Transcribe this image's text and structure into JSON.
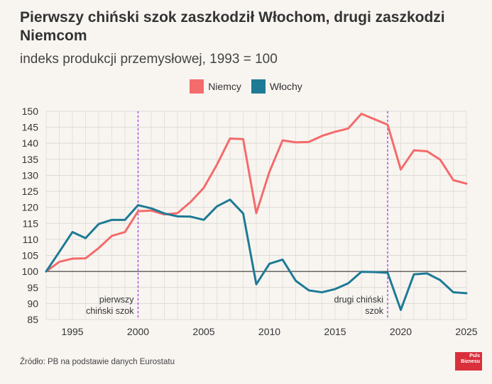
{
  "title": "Pierwszy chiński szok zaszkodził Włochom, drugi zaszkodzi Niemcom",
  "subtitle": "indeks produkcji przemysłowej, 1993 = 100",
  "source": "Źródło: PB na podstawie danych Eurostatu",
  "logo_text": "Puls Biznesu",
  "colors": {
    "niemcy": "#f46b6b",
    "wlochy": "#1e7a95",
    "marker": "#b455e8",
    "background": "#f8f5f1"
  },
  "chart_data": {
    "type": "line",
    "title": "Pierwszy chiński szok zaszkodził Włochom, drugi zaszkodzi Niemcom",
    "ylabel": "indeks produkcji przemysłowej, 1993 = 100",
    "xlim": [
      1993,
      2025
    ],
    "ylim": [
      85,
      150
    ],
    "yticks": [
      85,
      90,
      95,
      100,
      105,
      110,
      115,
      120,
      125,
      130,
      135,
      140,
      145,
      150
    ],
    "xticks": [
      1995,
      2000,
      2005,
      2010,
      2015,
      2020,
      2025
    ],
    "reference_line": 100,
    "x": [
      1993,
      1994,
      1995,
      1996,
      1997,
      1998,
      1999,
      2000,
      2001,
      2002,
      2003,
      2004,
      2005,
      2006,
      2007,
      2008,
      2009,
      2010,
      2011,
      2012,
      2013,
      2014,
      2015,
      2016,
      2017,
      2018,
      2019,
      2020,
      2021,
      2022,
      2023,
      2024,
      2025
    ],
    "series": [
      {
        "name": "Niemcy",
        "color": "#f46b6b",
        "values": [
          100,
          103,
          104,
          104.1,
          107.3,
          111.1,
          112.3,
          118.8,
          119,
          117.8,
          118.2,
          121.7,
          126.1,
          133.3,
          141.5,
          141.3,
          118.2,
          131.1,
          140.9,
          140.3,
          140.4,
          142.3,
          143.6,
          144.6,
          149.2,
          147.5,
          145.8,
          131.8,
          137.8,
          137.5,
          134.9,
          128.5,
          127.4
        ]
      },
      {
        "name": "Włochy",
        "color": "#1e7a95",
        "values": [
          100,
          106.1,
          112.3,
          110.4,
          114.8,
          116.1,
          116.1,
          120.7,
          119.7,
          118.1,
          117.2,
          117.1,
          116.1,
          120.3,
          122.4,
          118.1,
          96,
          102.4,
          103.7,
          97.1,
          94.1,
          93.5,
          94.5,
          96.3,
          99.9,
          99.8,
          99.6,
          88,
          99.1,
          99.4,
          97.3,
          93.5,
          93.2
        ]
      }
    ],
    "annotations": [
      {
        "x": 2000,
        "label_lines": [
          "pierwszy",
          "chiński szok"
        ]
      },
      {
        "x": 2019,
        "label_lines": [
          "drugi chiński",
          "szok"
        ]
      }
    ],
    "legend": "top-center"
  }
}
